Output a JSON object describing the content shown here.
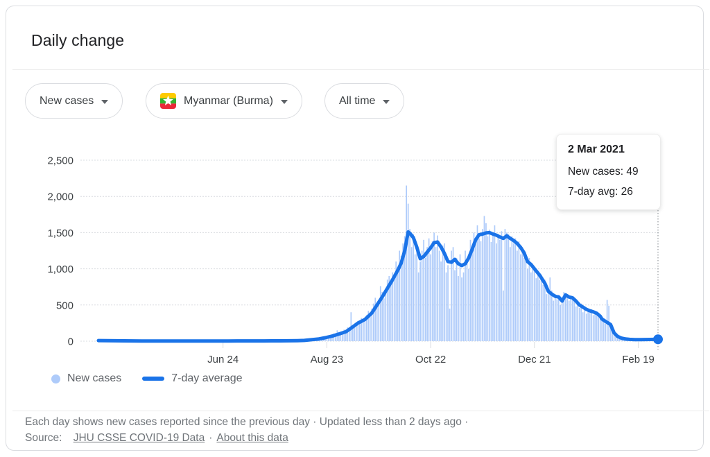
{
  "header": {
    "title": "Daily change"
  },
  "filters": [
    {
      "label": "New cases"
    },
    {
      "label": "Myanmar (Burma)"
    },
    {
      "label": "All time"
    }
  ],
  "tooltip": {
    "date": "2 Mar 2021",
    "rows": [
      "New cases: 49",
      "7-day avg: 26"
    ]
  },
  "legend": [
    {
      "label": "New cases",
      "color": "#aecbfa",
      "swatch": "dot"
    },
    {
      "label": "7-day average",
      "color": "#1a73e8",
      "swatch": "line"
    }
  ],
  "footer": {
    "line1": "Each day shows new cases reported since the previous day  ·  Updated less than 2 days ago  ·",
    "source_label": "Source:",
    "source_link": "JHU CSSE COVID-19 Data",
    "separator": "·",
    "about_link": "About this data"
  },
  "chart_data": {
    "type": "bar",
    "overlay_type": "line",
    "title": "Daily change",
    "xlabel": "",
    "ylabel": "",
    "ylim": [
      0,
      2500
    ],
    "end_day": 323,
    "grid": true,
    "legend_position": "bottom-left",
    "x_ticks": [
      {
        "label": "Jun 24",
        "day": 72
      },
      {
        "label": "Aug 23",
        "day": 132
      },
      {
        "label": "Oct 22",
        "day": 192
      },
      {
        "label": "Dec 21",
        "day": 252
      },
      {
        "label": "Feb 19",
        "day": 312
      }
    ],
    "y_ticks": [
      {
        "label": "0",
        "value": 0
      },
      {
        "label": "500",
        "value": 500
      },
      {
        "label": "1,000",
        "value": 1000
      },
      {
        "label": "1,500",
        "value": 1500
      },
      {
        "label": "2,000",
        "value": 2000
      },
      {
        "label": "2,500",
        "value": 2500
      }
    ],
    "highlight": {
      "date": "2 Mar 2021",
      "day": 323,
      "new_cases": 49,
      "seven_day_avg": 26
    },
    "colors": {
      "bar": "#aecbfa",
      "line": "#1a73e8",
      "grid": "#dadce0",
      "axis_text": "#3c4043",
      "indicator": "#80868b"
    },
    "series": [
      {
        "name": "New cases",
        "type": "bar",
        "color": "#aecbfa",
        "values_daily": [
          10,
          12,
          8,
          15,
          9,
          11,
          7,
          6,
          8,
          5,
          6,
          4,
          7,
          3,
          5,
          6,
          4,
          2,
          5,
          3,
          4,
          2,
          6,
          3,
          2,
          4,
          1,
          3,
          2,
          4,
          2,
          3,
          5,
          2,
          1,
          3,
          2,
          4,
          1,
          2,
          3,
          1,
          2,
          4,
          2,
          1,
          3,
          2,
          1,
          2,
          1,
          3,
          2,
          1,
          2,
          3,
          1,
          2,
          1,
          3,
          2,
          1,
          4,
          2,
          3,
          1,
          2,
          5,
          2,
          3,
          2,
          4,
          1,
          3,
          2,
          5,
          3,
          2,
          4,
          3,
          5,
          2,
          3,
          6,
          2,
          4,
          3,
          5,
          2,
          4,
          3,
          5,
          4,
          2,
          6,
          3,
          4,
          5,
          3,
          6,
          4,
          3,
          7,
          4,
          5,
          3,
          8,
          4,
          6,
          5,
          7,
          4,
          8,
          5,
          9,
          6,
          10,
          8,
          12,
          15,
          18,
          14,
          25,
          20,
          30,
          24,
          35,
          28,
          45,
          38,
          55,
          48,
          70,
          62,
          85,
          75,
          105,
          95,
          150,
          110,
          130,
          120,
          160,
          145,
          190,
          170,
          400,
          210,
          240,
          220,
          280,
          250,
          320,
          270,
          310,
          360,
          420,
          380,
          450,
          520,
          600,
          480,
          560,
          760,
          680,
          590,
          720,
          850,
          900,
          780,
          950,
          880,
          1100,
          1020,
          1250,
          1180,
          1350,
          1450,
          2150,
          1900,
          1550,
          1300,
          1480,
          1200,
          1350,
          950,
          1100,
          1250,
          1400,
          1150,
          1300,
          1420,
          1200,
          1380,
          1500,
          1300,
          1460,
          1250,
          1100,
          1320,
          1350,
          950,
          1050,
          450,
          1250,
          1300,
          980,
          1150,
          900,
          1200,
          880,
          950,
          1250,
          1100,
          1000,
          1400,
          1280,
          1500,
          1350,
          1600,
          1420,
          1380,
          1550,
          1730,
          1630,
          1450,
          1540,
          1370,
          1500,
          1600,
          1350,
          1480,
          1400,
          1520,
          700,
          1550,
          1500,
          1480,
          1300,
          1450,
          1350,
          1420,
          1250,
          1380,
          1200,
          1300,
          1150,
          1200,
          1000,
          1150,
          950,
          1050,
          1020,
          870,
          950,
          850,
          920,
          780,
          850,
          650,
          700,
          880,
          700,
          560,
          650,
          580,
          640,
          500,
          590,
          680,
          620,
          650,
          560,
          630,
          580,
          600,
          480,
          550,
          460,
          520,
          400,
          470,
          380,
          450,
          390,
          440,
          360,
          420,
          350,
          380,
          320,
          290,
          300,
          240,
          570,
          490,
          180,
          150,
          90,
          70,
          50,
          45,
          30,
          35,
          28,
          20,
          25,
          18,
          20,
          25,
          15,
          22,
          18,
          20,
          28,
          15,
          25,
          20,
          30,
          22,
          35,
          18,
          28,
          49
        ]
      },
      {
        "name": "7-day average",
        "type": "line",
        "color": "#1a73e8",
        "points": [
          [
            0,
            9
          ],
          [
            5,
            8
          ],
          [
            10,
            6
          ],
          [
            15,
            5
          ],
          [
            20,
            4
          ],
          [
            25,
            3
          ],
          [
            30,
            3
          ],
          [
            35,
            3
          ],
          [
            40,
            2
          ],
          [
            45,
            2
          ],
          [
            50,
            2
          ],
          [
            55,
            2
          ],
          [
            60,
            2
          ],
          [
            65,
            3
          ],
          [
            70,
            3
          ],
          [
            75,
            3
          ],
          [
            80,
            4
          ],
          [
            85,
            4
          ],
          [
            90,
            4
          ],
          [
            95,
            4
          ],
          [
            100,
            5
          ],
          [
            105,
            5
          ],
          [
            110,
            6
          ],
          [
            115,
            8
          ],
          [
            119,
            11
          ],
          [
            123,
            20
          ],
          [
            127,
            30
          ],
          [
            131,
            48
          ],
          [
            135,
            70
          ],
          [
            139,
            100
          ],
          [
            143,
            130
          ],
          [
            146,
            180
          ],
          [
            150,
            250
          ],
          [
            154,
            300
          ],
          [
            158,
            390
          ],
          [
            161,
            500
          ],
          [
            164,
            610
          ],
          [
            167,
            730
          ],
          [
            170,
            850
          ],
          [
            173,
            980
          ],
          [
            175,
            1080
          ],
          [
            177,
            1250
          ],
          [
            179,
            1510
          ],
          [
            180,
            1490
          ],
          [
            182,
            1430
          ],
          [
            184,
            1300
          ],
          [
            186,
            1140
          ],
          [
            188,
            1170
          ],
          [
            190,
            1230
          ],
          [
            192,
            1290
          ],
          [
            194,
            1360
          ],
          [
            196,
            1370
          ],
          [
            198,
            1300
          ],
          [
            200,
            1210
          ],
          [
            202,
            1100
          ],
          [
            204,
            1090
          ],
          [
            206,
            1130
          ],
          [
            208,
            1070
          ],
          [
            210,
            1045
          ],
          [
            212,
            1070
          ],
          [
            214,
            1150
          ],
          [
            216,
            1270
          ],
          [
            218,
            1400
          ],
          [
            220,
            1470
          ],
          [
            222,
            1480
          ],
          [
            224,
            1495
          ],
          [
            226,
            1500
          ],
          [
            228,
            1480
          ],
          [
            230,
            1465
          ],
          [
            232,
            1440
          ],
          [
            234,
            1420
          ],
          [
            236,
            1455
          ],
          [
            238,
            1420
          ],
          [
            240,
            1390
          ],
          [
            242,
            1350
          ],
          [
            244,
            1295
          ],
          [
            246,
            1220
          ],
          [
            248,
            1100
          ],
          [
            250,
            1060
          ],
          [
            252,
            1000
          ],
          [
            255,
            912
          ],
          [
            258,
            800
          ],
          [
            260,
            690
          ],
          [
            262,
            650
          ],
          [
            264,
            620
          ],
          [
            266,
            610
          ],
          [
            268,
            555
          ],
          [
            270,
            640
          ],
          [
            272,
            610
          ],
          [
            274,
            600
          ],
          [
            276,
            555
          ],
          [
            278,
            500
          ],
          [
            280,
            470
          ],
          [
            282,
            440
          ],
          [
            284,
            420
          ],
          [
            286,
            405
          ],
          [
            288,
            385
          ],
          [
            290,
            345
          ],
          [
            291,
            307
          ],
          [
            293,
            275
          ],
          [
            294,
            260
          ],
          [
            296,
            230
          ],
          [
            298,
            115
          ],
          [
            300,
            67
          ],
          [
            302,
            45
          ],
          [
            303,
            38
          ],
          [
            305,
            30
          ],
          [
            307,
            25
          ],
          [
            310,
            22
          ],
          [
            313,
            22
          ],
          [
            316,
            23
          ],
          [
            319,
            24
          ],
          [
            323,
            26
          ]
        ]
      }
    ]
  }
}
